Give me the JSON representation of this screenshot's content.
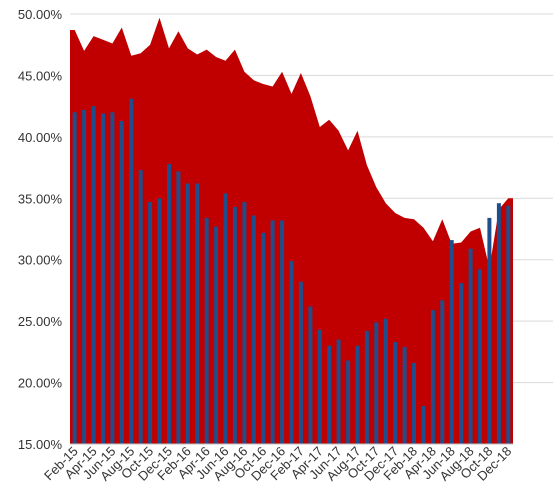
{
  "colors": {
    "area": "#c00000",
    "bar": "#1f4e8c",
    "grid": "#d9d9d9",
    "axis": "#bfbfbf",
    "text": "#333333"
  },
  "chart_data": {
    "type": "bar",
    "title": "",
    "xlabel": "",
    "ylabel": "",
    "ylim": [
      15,
      50
    ],
    "ytick_labels": [
      "15.00%",
      "20.00%",
      "25.00%",
      "30.00%",
      "35.00%",
      "40.00%",
      "45.00%",
      "50.00%"
    ],
    "grid": "horizontal",
    "legend": "none",
    "x_tick_labels": [
      "Feb-15",
      "Apr-15",
      "Jun-15",
      "Aug-15",
      "Oct-15",
      "Dec-15",
      "Feb-16",
      "Apr-16",
      "Jun-16",
      "Aug-16",
      "Oct-16",
      "Dec-16",
      "Feb-17",
      "Apr-17",
      "Jun-17",
      "Aug-17",
      "Oct-17",
      "Dec-17",
      "Feb-18",
      "Apr-18",
      "Jun-18",
      "Aug-18",
      "Oct-18",
      "Dec-18"
    ],
    "categories": [
      "Feb-15",
      "Mar-15",
      "Apr-15",
      "May-15",
      "Jun-15",
      "Jul-15",
      "Aug-15",
      "Sep-15",
      "Oct-15",
      "Nov-15",
      "Dec-15",
      "Jan-16",
      "Feb-16",
      "Mar-16",
      "Apr-16",
      "May-16",
      "Jun-16",
      "Jul-16",
      "Aug-16",
      "Sep-16",
      "Oct-16",
      "Nov-16",
      "Dec-16",
      "Jan-17",
      "Feb-17",
      "Mar-17",
      "Apr-17",
      "May-17",
      "Jun-17",
      "Jul-17",
      "Aug-17",
      "Sep-17",
      "Oct-17",
      "Nov-17",
      "Dec-17",
      "Jan-18",
      "Feb-18",
      "Mar-18",
      "Apr-18",
      "May-18",
      "Jun-18",
      "Jul-18",
      "Aug-18",
      "Sep-18",
      "Oct-18",
      "Nov-18",
      "Dec-18"
    ],
    "series": [
      {
        "type": "area",
        "values": [
          48.7,
          47.0,
          48.2,
          47.9,
          47.6,
          48.9,
          46.6,
          46.8,
          47.5,
          49.7,
          47.2,
          48.6,
          47.2,
          46.7,
          47.1,
          46.5,
          46.2,
          47.1,
          45.3,
          44.6,
          44.3,
          44.1,
          45.3,
          43.5,
          45.2,
          43.3,
          40.8,
          41.4,
          40.5,
          38.9,
          40.5,
          37.7,
          35.9,
          34.6,
          33.8,
          33.4,
          33.3,
          32.6,
          31.5,
          33.3,
          31.3,
          31.4,
          32.3,
          32.6,
          29.3,
          34.1,
          35.0
        ]
      },
      {
        "type": "bar",
        "values": [
          42.0,
          42.2,
          42.5,
          41.9,
          42.0,
          41.3,
          43.1,
          37.3,
          34.7,
          35.0,
          37.8,
          37.2,
          36.2,
          36.2,
          33.4,
          32.7,
          35.4,
          34.3,
          34.7,
          33.6,
          32.2,
          33.2,
          33.2,
          29.9,
          28.2,
          26.2,
          24.3,
          23.0,
          23.5,
          21.8,
          23.0,
          24.2,
          24.9,
          25.2,
          23.3,
          22.9,
          21.6,
          18.1,
          25.9,
          26.7,
          31.6,
          28.1,
          30.9,
          29.2,
          33.4,
          34.6,
          34.4
        ]
      }
    ]
  }
}
